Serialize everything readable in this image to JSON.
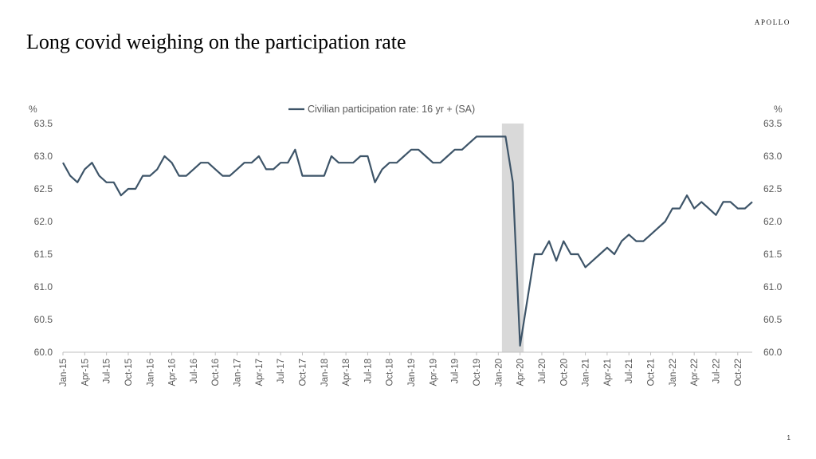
{
  "brand": "APOLLO",
  "title": "Long covid weighing on the participation rate",
  "page_number": "1",
  "chart_data": {
    "type": "line",
    "title": "Long covid weighing on the participation rate",
    "left_axis_unit": "%",
    "right_axis_unit": "%",
    "ylim": [
      60.0,
      63.5
    ],
    "y_ticks": [
      "60.0",
      "60.5",
      "61.0",
      "61.5",
      "62.0",
      "62.5",
      "63.0",
      "63.5"
    ],
    "x_tick_labels": [
      "Jan-15",
      "Apr-15",
      "Jul-15",
      "Oct-15",
      "Jan-16",
      "Apr-16",
      "Jul-16",
      "Oct-16",
      "Jan-17",
      "Apr-17",
      "Jul-17",
      "Oct-17",
      "Jan-18",
      "Apr-18",
      "Jul-18",
      "Oct-18",
      "Jan-19",
      "Apr-19",
      "Jul-19",
      "Oct-19",
      "Jan-20",
      "Apr-20",
      "Jul-20",
      "Oct-20",
      "Jan-21",
      "Apr-21",
      "Jul-21",
      "Oct-21",
      "Jan-22",
      "Apr-22",
      "Jul-22",
      "Oct-22"
    ],
    "legend": "top-center",
    "grid": false,
    "line_color": "#3d5468",
    "shade_color": "#d9d9d9",
    "recession_shading": [
      "Feb-20",
      "Apr-20"
    ],
    "series": [
      {
        "name": "Civilian participation rate: 16 yr + (SA)",
        "start": "Jan-15",
        "frequency": "monthly",
        "values": [
          62.9,
          62.7,
          62.6,
          62.8,
          62.9,
          62.7,
          62.6,
          62.6,
          62.4,
          62.5,
          62.5,
          62.7,
          62.7,
          62.8,
          63.0,
          62.9,
          62.7,
          62.7,
          62.8,
          62.9,
          62.9,
          62.8,
          62.7,
          62.7,
          62.8,
          62.9,
          62.9,
          63.0,
          62.8,
          62.8,
          62.9,
          62.9,
          63.1,
          62.7,
          62.7,
          62.7,
          62.7,
          63.0,
          62.9,
          62.9,
          62.9,
          63.0,
          63.0,
          62.6,
          62.8,
          62.9,
          62.9,
          63.0,
          63.1,
          63.1,
          63.0,
          62.9,
          62.9,
          63.0,
          63.1,
          63.1,
          63.2,
          63.3,
          63.3,
          63.3,
          63.3,
          63.3,
          62.6,
          60.1,
          60.8,
          61.5,
          61.5,
          61.7,
          61.4,
          61.7,
          61.5,
          61.5,
          61.3,
          61.4,
          61.5,
          61.6,
          61.5,
          61.7,
          61.8,
          61.7,
          61.7,
          61.8,
          61.9,
          62.0,
          62.2,
          62.2,
          62.4,
          62.2,
          62.3,
          62.2,
          62.1,
          62.3,
          62.3,
          62.2,
          62.2,
          62.3
        ]
      }
    ]
  }
}
